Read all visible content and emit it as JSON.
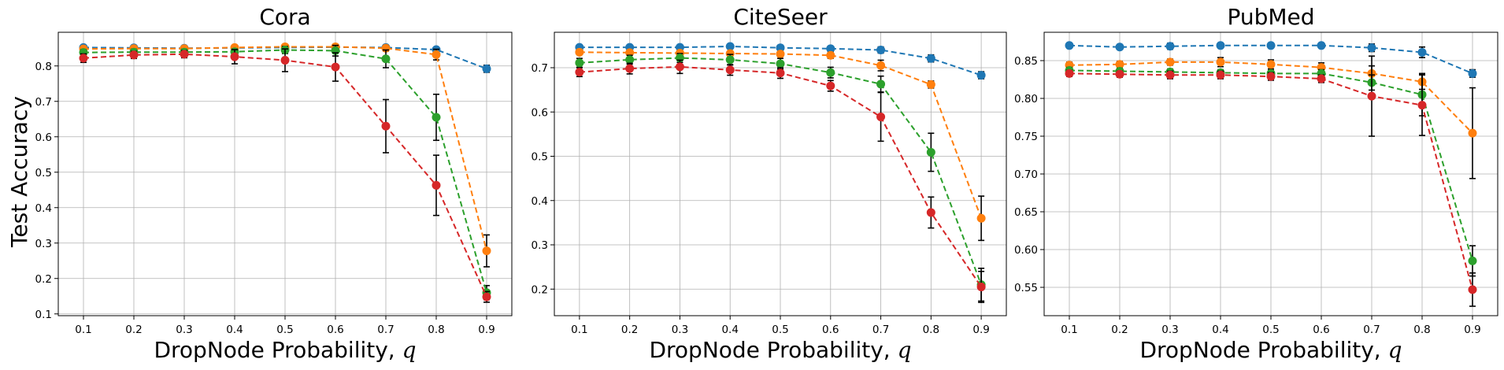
{
  "figure": {
    "ylabel": "Test Accuracy",
    "xlabel_prefix": "DropNode Probability, ",
    "xlabel_var": "q"
  },
  "chart_data": [
    {
      "type": "line",
      "title": "Cora",
      "xlabel": "DropNode Probability, q",
      "ylabel": "Test Accuracy",
      "x": [
        0.1,
        0.2,
        0.3,
        0.4,
        0.5,
        0.6,
        0.7,
        0.8,
        0.9
      ],
      "xlim": [
        0.05,
        0.95
      ],
      "ylim": [
        0.095,
        0.895
      ],
      "yticks": [
        0.1,
        0.2,
        0.3,
        0.4,
        0.5,
        0.6,
        0.7,
        0.8
      ],
      "ytick_labels": [
        "0.1",
        "0.2",
        "0.3",
        "0.4",
        "0.5",
        "0.6",
        "0.7",
        "0.8"
      ],
      "grid": true,
      "series": [
        {
          "color": "#1f77b4",
          "values": [
            0.852,
            0.851,
            0.85,
            0.851,
            0.852,
            0.853,
            0.852,
            0.846,
            0.792
          ],
          "errors": [
            0.004,
            0.004,
            0.004,
            0.004,
            0.004,
            0.004,
            0.004,
            0.004,
            0.01
          ]
        },
        {
          "color": "#ff7f0e",
          "values": [
            0.848,
            0.849,
            0.849,
            0.852,
            0.854,
            0.854,
            0.85,
            0.832,
            0.278
          ],
          "errors": [
            0.005,
            0.005,
            0.005,
            0.005,
            0.005,
            0.006,
            0.008,
            0.015,
            0.045
          ]
        },
        {
          "color": "#2ca02c",
          "values": [
            0.838,
            0.839,
            0.839,
            0.84,
            0.845,
            0.843,
            0.82,
            0.655,
            0.16
          ],
          "errors": [
            0.008,
            0.008,
            0.008,
            0.008,
            0.01,
            0.015,
            0.025,
            0.065,
            0.02
          ]
        },
        {
          "color": "#d62728",
          "values": [
            0.822,
            0.831,
            0.833,
            0.826,
            0.816,
            0.797,
            0.63,
            0.463,
            0.148
          ],
          "errors": [
            0.012,
            0.01,
            0.01,
            0.02,
            0.032,
            0.04,
            0.075,
            0.085,
            0.015
          ]
        }
      ]
    },
    {
      "type": "line",
      "title": "CiteSeer",
      "xlabel": "DropNode Probability, q",
      "x": [
        0.1,
        0.2,
        0.3,
        0.4,
        0.5,
        0.6,
        0.7,
        0.8,
        0.9
      ],
      "xlim": [
        0.05,
        0.95
      ],
      "ylim": [
        0.14,
        0.78
      ],
      "yticks": [
        0.2,
        0.3,
        0.4,
        0.5,
        0.6,
        0.7
      ],
      "ytick_labels": [
        "0.2",
        "0.3",
        "0.4",
        "0.5",
        "0.6",
        "0.7"
      ],
      "grid": true,
      "series": [
        {
          "color": "#1f77b4",
          "values": [
            0.746,
            0.746,
            0.746,
            0.748,
            0.745,
            0.743,
            0.74,
            0.721,
            0.683
          ],
          "errors": [
            0.004,
            0.004,
            0.004,
            0.004,
            0.004,
            0.004,
            0.007,
            0.008,
            0.008
          ]
        },
        {
          "color": "#ff7f0e",
          "values": [
            0.735,
            0.734,
            0.733,
            0.732,
            0.731,
            0.728,
            0.705,
            0.662,
            0.36
          ],
          "errors": [
            0.005,
            0.005,
            0.005,
            0.005,
            0.006,
            0.007,
            0.012,
            0.008,
            0.05
          ]
        },
        {
          "color": "#2ca02c",
          "values": [
            0.711,
            0.718,
            0.722,
            0.718,
            0.709,
            0.689,
            0.663,
            0.509,
            0.21
          ],
          "errors": [
            0.01,
            0.01,
            0.01,
            0.012,
            0.012,
            0.012,
            0.018,
            0.043,
            0.037
          ]
        },
        {
          "color": "#d62728",
          "values": [
            0.69,
            0.698,
            0.702,
            0.695,
            0.688,
            0.659,
            0.589,
            0.373,
            0.205
          ],
          "errors": [
            0.01,
            0.012,
            0.015,
            0.012,
            0.012,
            0.012,
            0.055,
            0.035,
            0.035
          ]
        }
      ]
    },
    {
      "type": "line",
      "title": "PubMed",
      "xlabel": "DropNode Probability, q",
      "x": [
        0.1,
        0.2,
        0.3,
        0.4,
        0.5,
        0.6,
        0.7,
        0.8,
        0.9
      ],
      "xlim": [
        0.05,
        0.95
      ],
      "ylim": [
        0.5125,
        0.8875
      ],
      "yticks": [
        0.55,
        0.6,
        0.65,
        0.7,
        0.75,
        0.8,
        0.85
      ],
      "ytick_labels": [
        "0.55",
        "0.60",
        "0.65",
        "0.70",
        "0.75",
        "0.80",
        "0.85"
      ],
      "grid": true,
      "series": [
        {
          "color": "#1f77b4",
          "values": [
            0.87,
            0.868,
            0.869,
            0.87,
            0.87,
            0.87,
            0.867,
            0.861,
            0.833
          ],
          "errors": [
            0.003,
            0.003,
            0.004,
            0.003,
            0.003,
            0.003,
            0.005,
            0.007,
            0.005
          ]
        },
        {
          "color": "#ff7f0e",
          "values": [
            0.844,
            0.845,
            0.848,
            0.848,
            0.845,
            0.841,
            0.833,
            0.822,
            0.754
          ],
          "errors": [
            0.004,
            0.004,
            0.004,
            0.006,
            0.006,
            0.006,
            0.01,
            0.01,
            0.06
          ]
        },
        {
          "color": "#2ca02c",
          "values": [
            0.837,
            0.836,
            0.835,
            0.834,
            0.833,
            0.833,
            0.821,
            0.805,
            0.585
          ],
          "errors": [
            0.004,
            0.004,
            0.004,
            0.004,
            0.004,
            0.005,
            0.01,
            0.028,
            0.02
          ]
        },
        {
          "color": "#d62728",
          "values": [
            0.833,
            0.832,
            0.831,
            0.831,
            0.829,
            0.826,
            0.803,
            0.791,
            0.547
          ],
          "errors": [
            0.004,
            0.004,
            0.005,
            0.005,
            0.005,
            0.005,
            0.053,
            0.04,
            0.022
          ]
        }
      ]
    }
  ]
}
